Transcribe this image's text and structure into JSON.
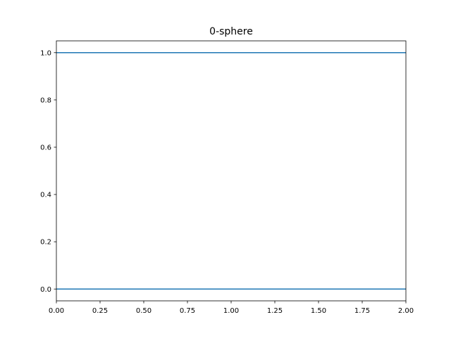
{
  "chart_data": {
    "type": "line",
    "title": "0-sphere",
    "xlabel": "",
    "ylabel": "",
    "xlim": [
      0,
      2
    ],
    "ylim": [
      -0.05,
      1.05
    ],
    "xticks": [
      0,
      0.25,
      0.5,
      0.75,
      1.0,
      1.25,
      1.5,
      1.75,
      2.0
    ],
    "xtick_labels": [
      "0.00",
      "0.25",
      "0.50",
      "0.75",
      "1.00",
      "1.25",
      "1.50",
      "1.75",
      "2.00"
    ],
    "yticks": [
      0,
      0.2,
      0.4,
      0.6,
      0.8,
      1.0
    ],
    "ytick_labels": [
      "0.0",
      "0.2",
      "0.4",
      "0.6",
      "0.8",
      "1.0"
    ],
    "grid": false,
    "legend": "none",
    "series": [
      {
        "x": [
          0,
          2
        ],
        "y": [
          1,
          1
        ],
        "color": "#1f77b4"
      },
      {
        "x": [
          0,
          2
        ],
        "y": [
          0,
          0
        ],
        "color": "#1f77b4"
      }
    ]
  }
}
